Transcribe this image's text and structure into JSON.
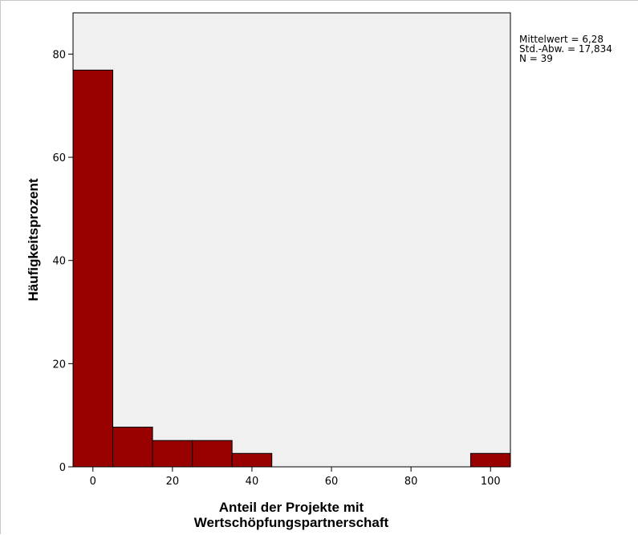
{
  "chart_data": {
    "type": "bar",
    "subtype": "histogram",
    "xlabel_line1": "Anteil der Projekte mit",
    "xlabel_line2": "Wertschöpfungspartnerschaft",
    "ylabel": "Häufigkeitsprozent",
    "xlim": [
      -5,
      105
    ],
    "ylim": [
      0,
      88
    ],
    "xticks": [
      "0",
      "20",
      "40",
      "60",
      "80",
      "100"
    ],
    "yticks": [
      "0",
      "20",
      "40",
      "60",
      "80"
    ],
    "bins": [
      {
        "from": -5,
        "to": 5,
        "value": 76.9
      },
      {
        "from": 5,
        "to": 15,
        "value": 7.7
      },
      {
        "from": 15,
        "to": 25,
        "value": 5.1
      },
      {
        "from": 25,
        "to": 35,
        "value": 5.1
      },
      {
        "from": 35,
        "to": 45,
        "value": 2.6
      },
      {
        "from": 95,
        "to": 105,
        "value": 2.6
      }
    ],
    "grid": false,
    "bar_color": "#990000",
    "plot_background": "#f0f0f0"
  },
  "stats": {
    "mean": "Mittelwert = 6,28",
    "sd": "Std.-Abw. = 17,834",
    "n": "N = 39"
  }
}
